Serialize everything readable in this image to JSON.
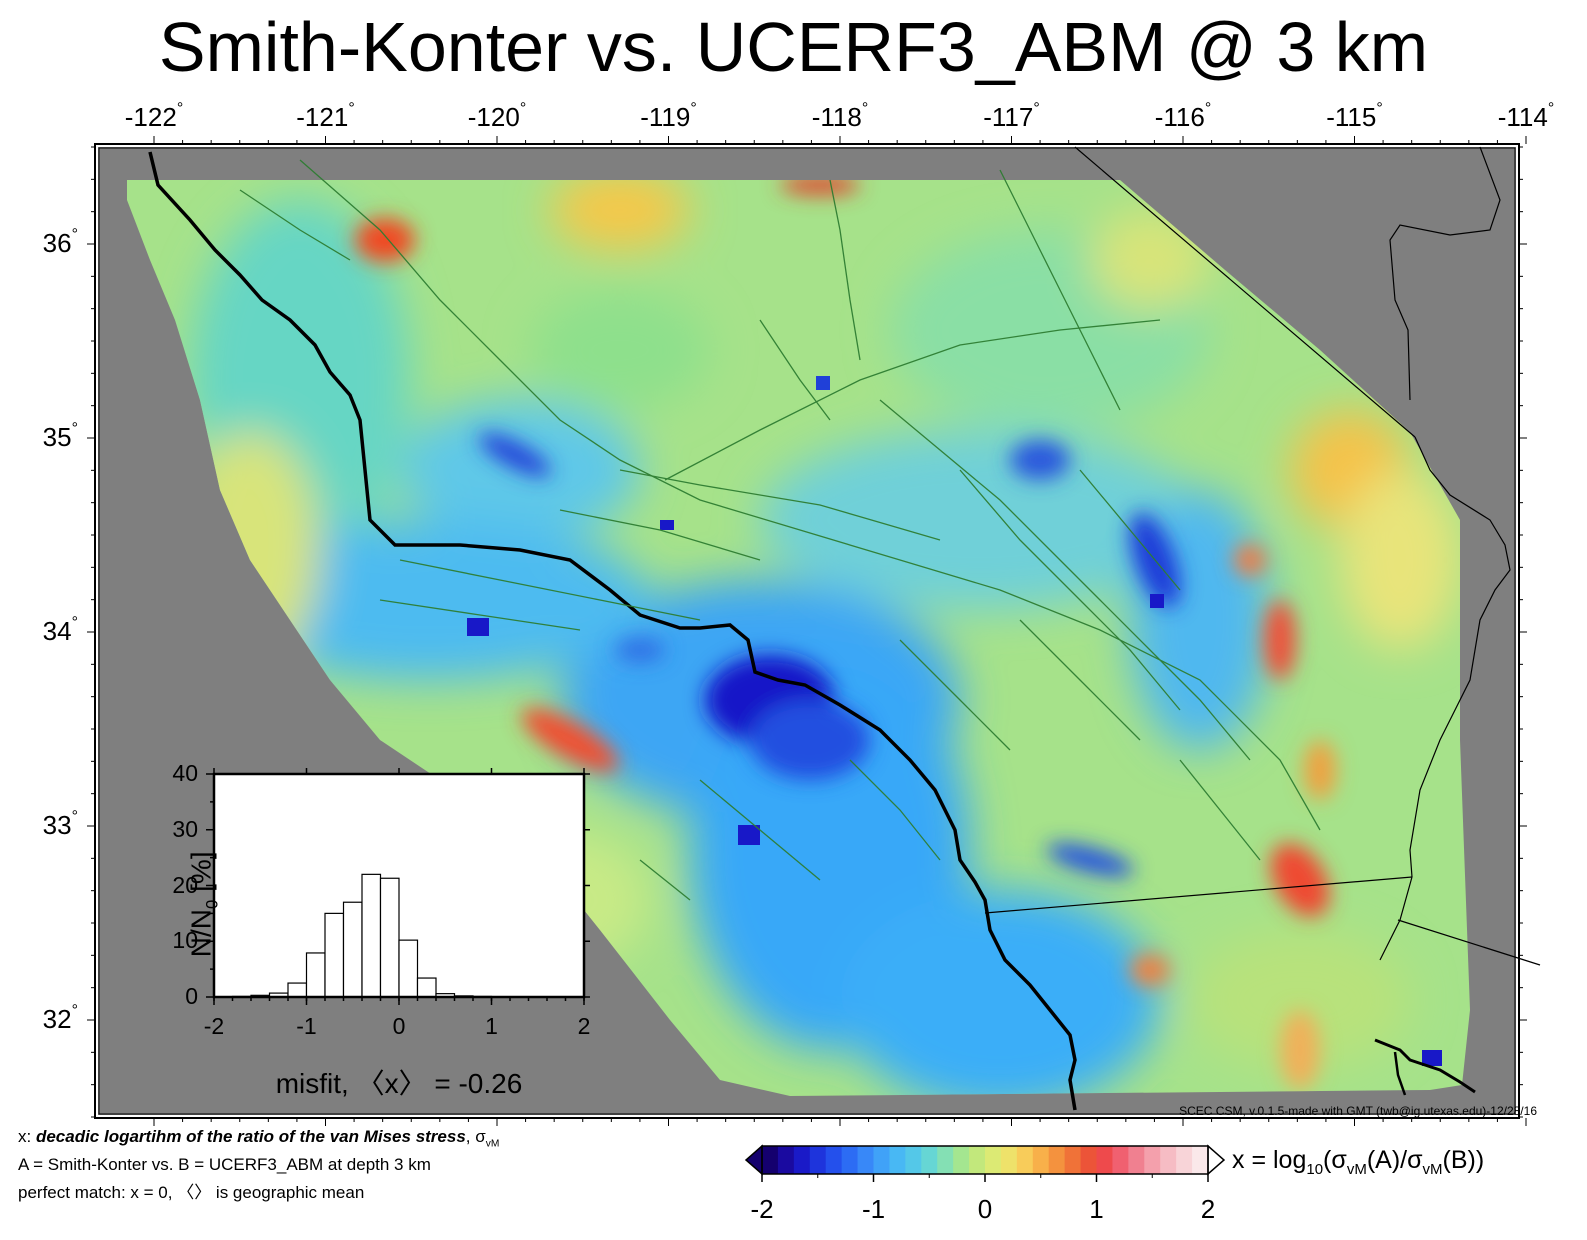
{
  "title": "Smith-Konter vs. UCERF3_ABM @ 3 km",
  "map": {
    "lon_ticks": [
      "-122",
      "-121",
      "-120",
      "-119",
      "-118",
      "-117",
      "-116",
      "-115",
      "-114"
    ],
    "lat_ticks": [
      "36",
      "35",
      "34",
      "33",
      "32"
    ],
    "degree_symbol": "°",
    "background_color": "#7f7f7f",
    "fault_color": "#2e7d32"
  },
  "credit": "SCEC CSM, v.0.1.5-made with GMT (twb@ig.utexas.edu)-12/28/16",
  "info": {
    "line1_prefix": "x: ",
    "line1_bold": "decadic logartihm of the ratio of the van Mises stress",
    "line1_suffix": ", σ",
    "line1_sub": "vM",
    "line2": "A = Smith-Konter vs.  B = UCERF3_ABM at depth 3 km",
    "line3": "perfect match: x = 0, 〈〉 is geographic mean"
  },
  "colorbar": {
    "ticks": [
      "-2",
      "-1",
      "0",
      "1",
      "2"
    ],
    "formula_prefix": "x = log",
    "formula_sub10": "10",
    "formula_mid1": "(σ",
    "formula_sub_vm1": "vM",
    "formula_mid2": "(A)/σ",
    "formula_sub_vm2": "vM",
    "formula_end": "(B))"
  },
  "inset": {
    "ylabel_main": "N/N",
    "ylabel_sub": "0",
    "ylabel_tail": " [%]",
    "xlabel": "misfit, 〈x〉 = -0.26",
    "x_ticks": [
      "-2",
      "-1",
      "0",
      "1",
      "2"
    ],
    "y_ticks": [
      "40",
      "30",
      "20",
      "10",
      "0"
    ]
  },
  "chart_data": {
    "type": "bar",
    "title": "",
    "xlabel": "misfit, 〈x〉 = -0.26",
    "ylabel": "N/N0 [%]",
    "xlim": [
      -2,
      2
    ],
    "ylim": [
      0,
      40
    ],
    "bin_width": 0.2,
    "x": [
      -1.7,
      -1.5,
      -1.3,
      -1.1,
      -0.9,
      -0.7,
      -0.5,
      -0.3,
      -0.1,
      0.1,
      0.3,
      0.5,
      0.7,
      0.9
    ],
    "values": [
      0.1,
      0.3,
      0.7,
      2.5,
      7.9,
      15.0,
      17.0,
      22.0,
      21.3,
      10.2,
      3.4,
      0.6,
      0.2,
      0.1
    ]
  }
}
